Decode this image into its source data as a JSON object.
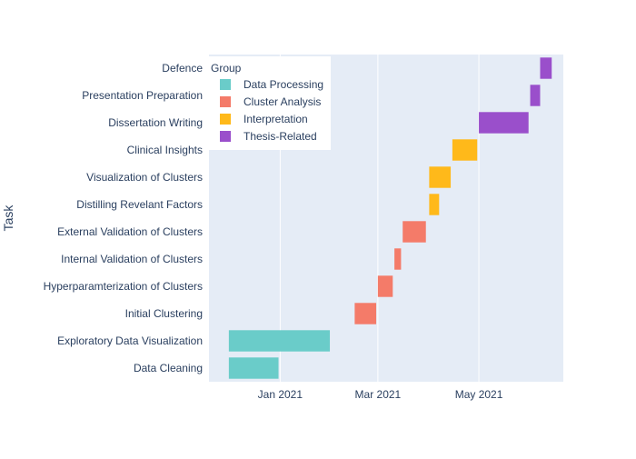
{
  "chart_data": {
    "type": "gantt",
    "title": "",
    "xlabel": "",
    "ylabel": "Task",
    "xlim": [
      "2020-11-19",
      "2021-06-21"
    ],
    "x_ticks": [
      {
        "date": "2021-01-01",
        "label": "Jan 2021"
      },
      {
        "date": "2021-03-01",
        "label": "Mar 2021"
      },
      {
        "date": "2021-05-01",
        "label": "May 2021"
      }
    ],
    "categories": [
      "Data Cleaning",
      "Exploratory Data Visualization",
      "Initial Clustering",
      "Hyperparamterization of Clusters",
      "Internal Validation of Clusters",
      "External Validation of Clusters",
      "Distilling Revelant Factors",
      "Visualization of Clusters",
      "Clinical Insights",
      "Dissertation Writing",
      "Presentation Preparation",
      "Defence"
    ],
    "legend": {
      "title": "Group",
      "position": "top-left",
      "items": [
        {
          "name": "Data Processing",
          "color": "#6ACCC9"
        },
        {
          "name": "Cluster Analysis",
          "color": "#F47B69"
        },
        {
          "name": "Interpretation",
          "color": "#FFB91A"
        },
        {
          "name": "Thesis-Related",
          "color": "#9A4FCB"
        }
      ]
    },
    "tasks": [
      {
        "task": "Data Cleaning",
        "start": "2020-12-01",
        "end": "2020-12-31",
        "group": "Data Processing"
      },
      {
        "task": "Exploratory Data Visualization",
        "start": "2020-12-01",
        "end": "2021-01-31",
        "group": "Data Processing"
      },
      {
        "task": "Initial Clustering",
        "start": "2021-02-15",
        "end": "2021-02-28",
        "group": "Cluster Analysis"
      },
      {
        "task": "Hyperparamterization of Clusters",
        "start": "2021-03-01",
        "end": "2021-03-10",
        "group": "Cluster Analysis"
      },
      {
        "task": "Internal Validation of Clusters",
        "start": "2021-03-11",
        "end": "2021-03-15",
        "group": "Cluster Analysis"
      },
      {
        "task": "External Validation of Clusters",
        "start": "2021-03-16",
        "end": "2021-03-30",
        "group": "Cluster Analysis"
      },
      {
        "task": "Distilling Revelant Factors",
        "start": "2021-04-01",
        "end": "2021-04-07",
        "group": "Interpretation"
      },
      {
        "task": "Visualization of Clusters",
        "start": "2021-04-01",
        "end": "2021-04-14",
        "group": "Interpretation"
      },
      {
        "task": "Clinical Insights",
        "start": "2021-04-15",
        "end": "2021-04-30",
        "group": "Interpretation"
      },
      {
        "task": "Dissertation Writing",
        "start": "2021-05-01",
        "end": "2021-05-31",
        "group": "Thesis-Related"
      },
      {
        "task": "Presentation Preparation",
        "start": "2021-06-01",
        "end": "2021-06-07",
        "group": "Thesis-Related"
      },
      {
        "task": "Defence",
        "start": "2021-06-07",
        "end": "2021-06-14",
        "group": "Thesis-Related"
      }
    ],
    "grid": true,
    "colors": {
      "plot_background": "#E5ECF6",
      "grid": "#FFFFFF",
      "text": "#2A3F5F"
    }
  }
}
